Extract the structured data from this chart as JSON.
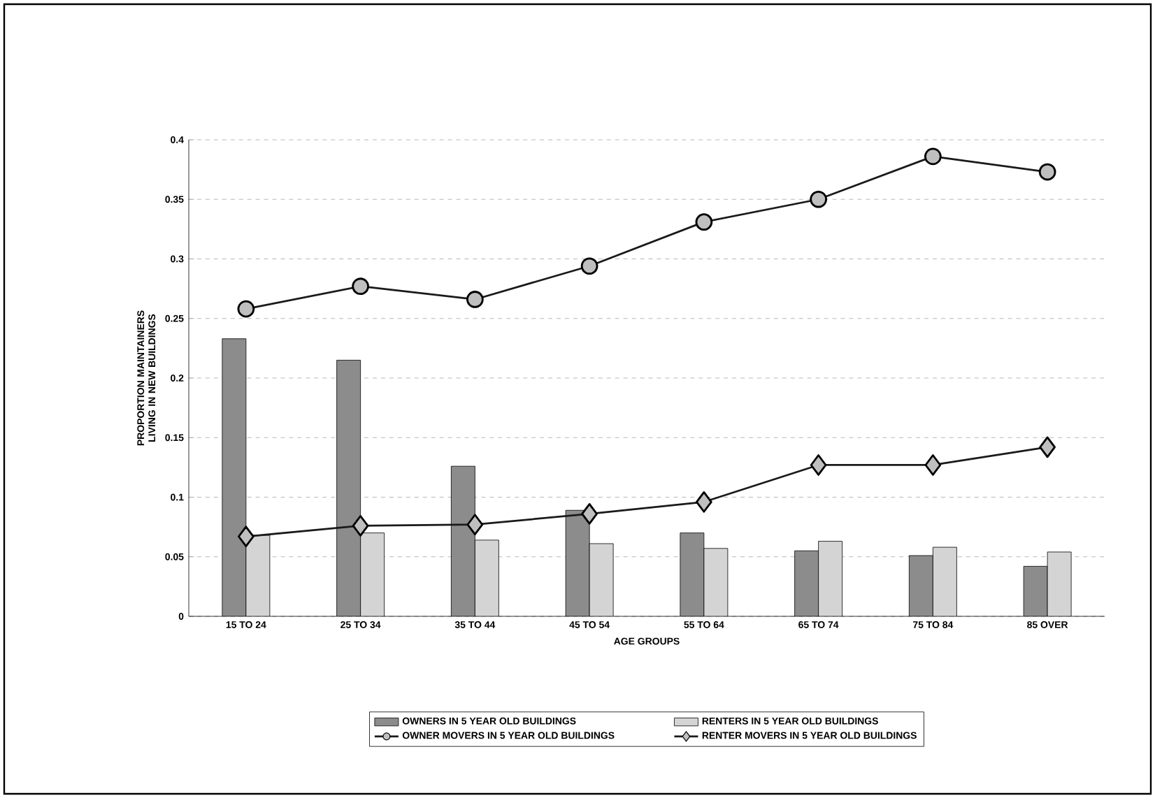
{
  "chart_data": {
    "type": "bar",
    "xlabel": "AGE GROUPS",
    "ylabel": "PROPORTION MAINTAINERS LIVING IN NEW BUILDINGS",
    "categories": [
      "15 TO 24",
      "25 TO 34",
      "35 TO 44",
      "45 TO 54",
      "55 TO 64",
      "65 TO 74",
      "75 TO 84",
      "85 OVER"
    ],
    "series": [
      {
        "name": "OWNERS IN 5 YEAR OLD BUILDINGS",
        "color": "#8c8c8c",
        "values": [
          0.233,
          0.215,
          0.126,
          0.089,
          0.07,
          0.055,
          0.051,
          0.042
        ]
      },
      {
        "name": "RENTERS IN 5 YEAR OLD BUILDINGS",
        "color": "#d4d4d4",
        "values": [
          0.068,
          0.07,
          0.064,
          0.061,
          0.057,
          0.063,
          0.058,
          0.054
        ]
      },
      {
        "name": "OWNER MOVERS IN 5 YEAR OLD BUILDINGS",
        "type": "line",
        "color": "#1a1a1a",
        "marker": "circle",
        "values": [
          0.258,
          0.277,
          0.266,
          0.294,
          0.331,
          0.35,
          0.386,
          0.373
        ]
      },
      {
        "name": "RENTER MOVERS IN 5 YEAR OLD BUILDINGS",
        "type": "line",
        "color": "#1a1a1a",
        "marker": "diamond",
        "values": [
          0.067,
          0.076,
          0.077,
          0.086,
          0.096,
          0.127,
          0.127,
          0.142
        ]
      }
    ],
    "ylim": [
      0,
      0.4
    ],
    "yticks": [
      0,
      0.05,
      0.1,
      0.15,
      0.2,
      0.25,
      0.3,
      0.35,
      0.4
    ],
    "grid": "y",
    "legend": "bottom"
  }
}
